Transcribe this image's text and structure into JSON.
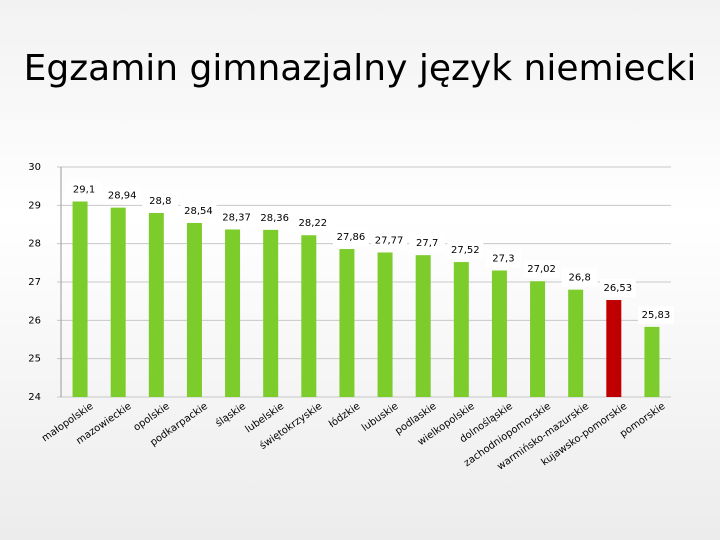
{
  "chart_data": {
    "type": "bar",
    "title": "Egzamin gimnazjalny język niemiecki",
    "categories": [
      "małopolskie",
      "mazowieckie",
      "opolskie",
      "podkarpackie",
      "śląskie",
      "lubelskie",
      "świętokrzyskie",
      "łódzkie",
      "lubuskie",
      "podlaskie",
      "wielkopolskie",
      "dolnośląskie",
      "zachodniopomorskie",
      "warmińsko-mazurskie",
      "kujawsko-pomorskie",
      "pomorskie"
    ],
    "values": [
      29.1,
      28.94,
      28.8,
      28.54,
      28.37,
      28.36,
      28.22,
      27.86,
      27.77,
      27.7,
      27.52,
      27.3,
      27.02,
      26.8,
      26.53,
      25.83
    ],
    "value_labels": [
      "29,1",
      "28,94",
      "28,8",
      "28,54",
      "28,37",
      "28,36",
      "28,22",
      "27,86",
      "27,77",
      "27,7",
      "27,52",
      "27,3",
      "27,02",
      "26,8",
      "26,53",
      "25,83"
    ],
    "colors": [
      "#7ccc2c",
      "#7ccc2c",
      "#7ccc2c",
      "#7ccc2c",
      "#7ccc2c",
      "#7ccc2c",
      "#7ccc2c",
      "#7ccc2c",
      "#7ccc2c",
      "#7ccc2c",
      "#7ccc2c",
      "#7ccc2c",
      "#7ccc2c",
      "#7ccc2c",
      "#c00000",
      "#7ccc2c"
    ],
    "ylim": [
      24,
      30
    ],
    "yticks": [
      24,
      25,
      26,
      27,
      28,
      29,
      30
    ],
    "grid": true
  }
}
